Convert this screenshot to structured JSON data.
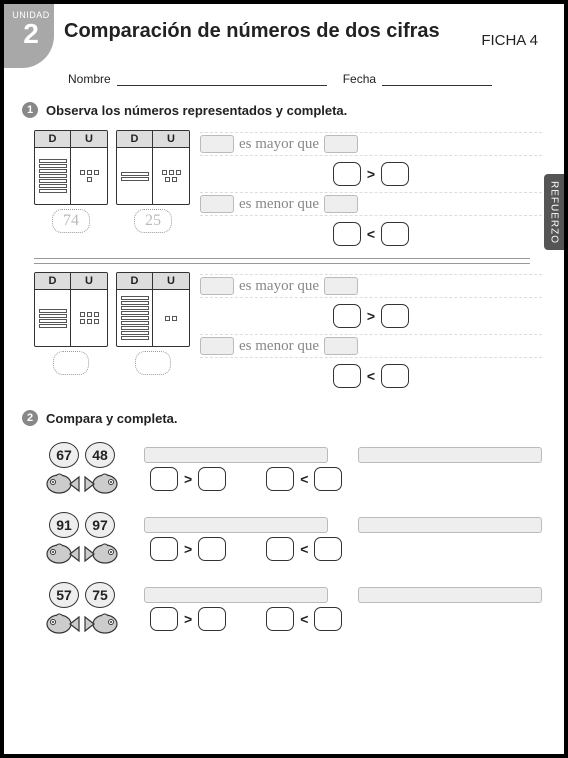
{
  "unit": {
    "label": "UNIDAD",
    "number": "2"
  },
  "title": "Comparación de números de dos cifras",
  "ficha": "FICHA 4",
  "labels": {
    "nombre": "Nombre",
    "fecha": "Fecha"
  },
  "side_tab": "REFUERZO",
  "section1": {
    "num": "1",
    "heading": "Observa los números representados y completa.",
    "du_labels": {
      "d": "D",
      "u": "U"
    },
    "rows": [
      {
        "blocks": [
          {
            "tens": 7,
            "units": 4,
            "value": "74"
          },
          {
            "tens": 2,
            "units": 5,
            "value": "25"
          }
        ]
      },
      {
        "blocks": [
          {
            "tens": 4,
            "units": 6,
            "value": ""
          },
          {
            "tens": 9,
            "units": 2,
            "value": ""
          }
        ]
      }
    ],
    "phrases": {
      "mayor": "es mayor que",
      "menor": "es menor que"
    },
    "ops": {
      "gt": ">",
      "lt": "<"
    }
  },
  "section2": {
    "num": "2",
    "heading": "Compara y completa.",
    "rows": [
      {
        "a": "67",
        "b": "48"
      },
      {
        "a": "91",
        "b": "97"
      },
      {
        "a": "57",
        "b": "75"
      }
    ],
    "ops": {
      "gt": ">",
      "lt": "<"
    }
  },
  "colors": {
    "badge_bg": "#a8a8a8",
    "cell_header_bg": "#dddddd",
    "cursive_text": "#888888",
    "side_tab_bg": "#555555",
    "slot_bg": "#eeeeee",
    "border": "#333333"
  }
}
